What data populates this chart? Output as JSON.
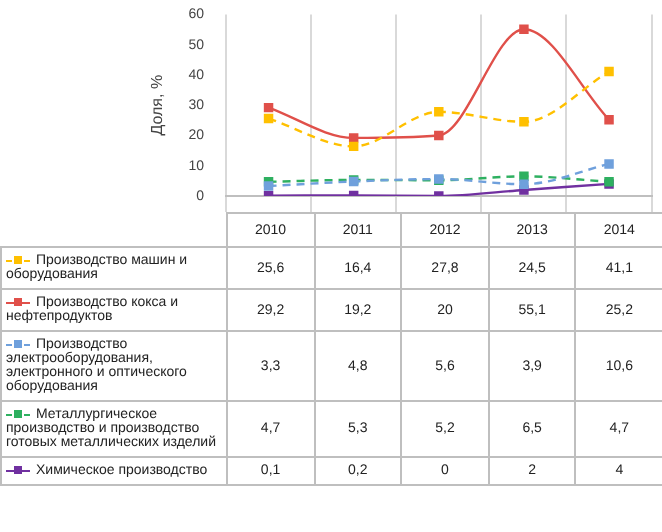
{
  "chart_data": {
    "type": "line",
    "ylabel": "Доля, %",
    "categories": [
      "2010",
      "2011",
      "2012",
      "2013",
      "2014"
    ],
    "series": [
      {
        "name": "Производство машин и оборудования",
        "color": "#ffc000",
        "line_style": "dashed",
        "values": [
          25.6,
          16.4,
          27.8,
          24.5,
          41.1
        ],
        "value_labels": [
          "25,6",
          "16,4",
          "27,8",
          "24,5",
          "41,1"
        ]
      },
      {
        "name": "Производство кокса и нефтепродуктов",
        "color": "#e0504a",
        "line_style": "solid",
        "values": [
          29.2,
          19.2,
          20,
          55.1,
          25.2
        ],
        "value_labels": [
          "29,2",
          "19,2",
          "20",
          "55,1",
          "25,2"
        ]
      },
      {
        "name": "Производство электрооборудования, электронного и оптического оборудования",
        "color": "#6fa0dc",
        "line_style": "dashed",
        "values": [
          3.3,
          4.8,
          5.6,
          3.9,
          10.6
        ],
        "value_labels": [
          "3,3",
          "4,8",
          "5,6",
          "3,9",
          "10,6"
        ]
      },
      {
        "name": "Металлургическое производство и производство готовых металлических изделий",
        "color": "#2eb060",
        "line_style": "dashed",
        "values": [
          4.7,
          5.3,
          5.2,
          6.5,
          4.7
        ],
        "value_labels": [
          "4,7",
          "5,3",
          "5,2",
          "6,5",
          "4,7"
        ]
      },
      {
        "name": "Химическое производство",
        "color": "#7030a0",
        "line_style": "solid",
        "values": [
          0.1,
          0.2,
          0,
          2,
          4
        ],
        "value_labels": [
          "0,1",
          "0,2",
          "0",
          "2",
          "4"
        ]
      }
    ],
    "ylim": [
      0,
      60
    ],
    "yticks": [
      0,
      10,
      20,
      30,
      40,
      50,
      60
    ],
    "grid": "x",
    "marker": "square",
    "legend": "bottom",
    "tick_labels": "y"
  }
}
